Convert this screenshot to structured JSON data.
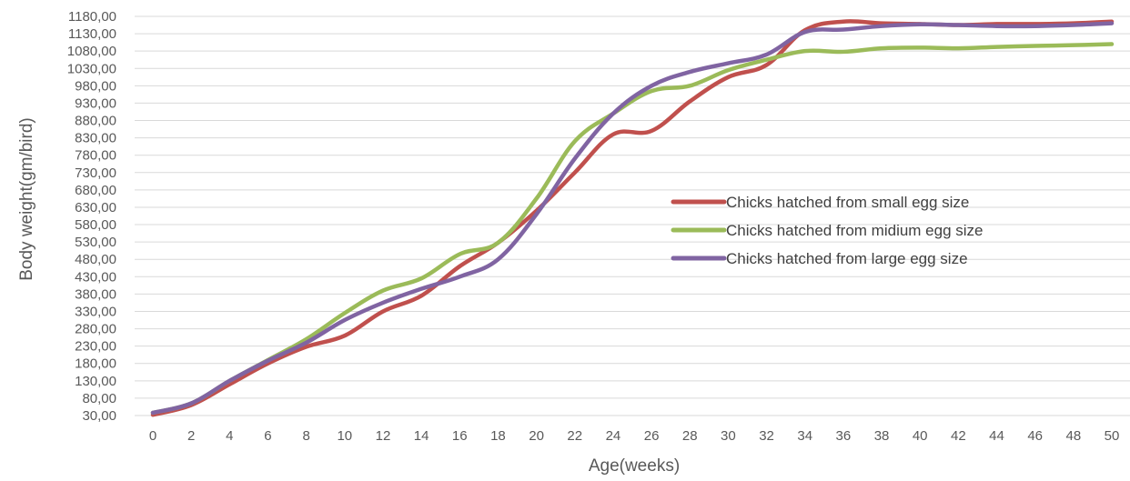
{
  "chart_data": {
    "type": "line",
    "xlabel": "Age(weeks)",
    "ylabel": "Body weight(gm/bird)",
    "ylim": [
      30,
      1180
    ],
    "y_ticks": [
      "30,00",
      "80,00",
      "130,00",
      "180,00",
      "230,00",
      "280,00",
      "330,00",
      "380,00",
      "430,00",
      "480,00",
      "530,00",
      "580,00",
      "630,00",
      "680,00",
      "730,00",
      "780,00",
      "830,00",
      "880,00",
      "930,00",
      "980,00",
      "1030,00",
      "1080,00",
      "1130,00",
      "1180,00"
    ],
    "x": [
      0,
      2,
      4,
      6,
      8,
      10,
      12,
      14,
      16,
      18,
      20,
      22,
      24,
      26,
      28,
      30,
      32,
      34,
      36,
      38,
      40,
      42,
      44,
      46,
      48,
      50
    ],
    "grid": "horizontal",
    "legend_position": "right-middle",
    "series": [
      {
        "name": "Chicks hatched from small egg size",
        "color": "#C0504D",
        "values": [
          32,
          60,
          120,
          180,
          228,
          260,
          330,
          375,
          460,
          528,
          620,
          730,
          840,
          850,
          935,
          1005,
          1040,
          1140,
          1165,
          1160,
          1158,
          1155,
          1158,
          1158,
          1160,
          1165
        ]
      },
      {
        "name": "Chicks hatched from midium egg size",
        "color": "#9BBB59",
        "values": [
          38,
          65,
          130,
          190,
          250,
          325,
          390,
          425,
          495,
          528,
          655,
          820,
          900,
          965,
          980,
          1025,
          1055,
          1080,
          1078,
          1088,
          1090,
          1088,
          1092,
          1095,
          1097,
          1100
        ]
      },
      {
        "name": "Chicks hatched from large egg size",
        "color": "#8064A2",
        "values": [
          38,
          65,
          130,
          188,
          240,
          305,
          355,
          395,
          430,
          480,
          610,
          770,
          900,
          980,
          1020,
          1045,
          1070,
          1135,
          1142,
          1152,
          1157,
          1155,
          1152,
          1152,
          1155,
          1160
        ]
      }
    ]
  }
}
